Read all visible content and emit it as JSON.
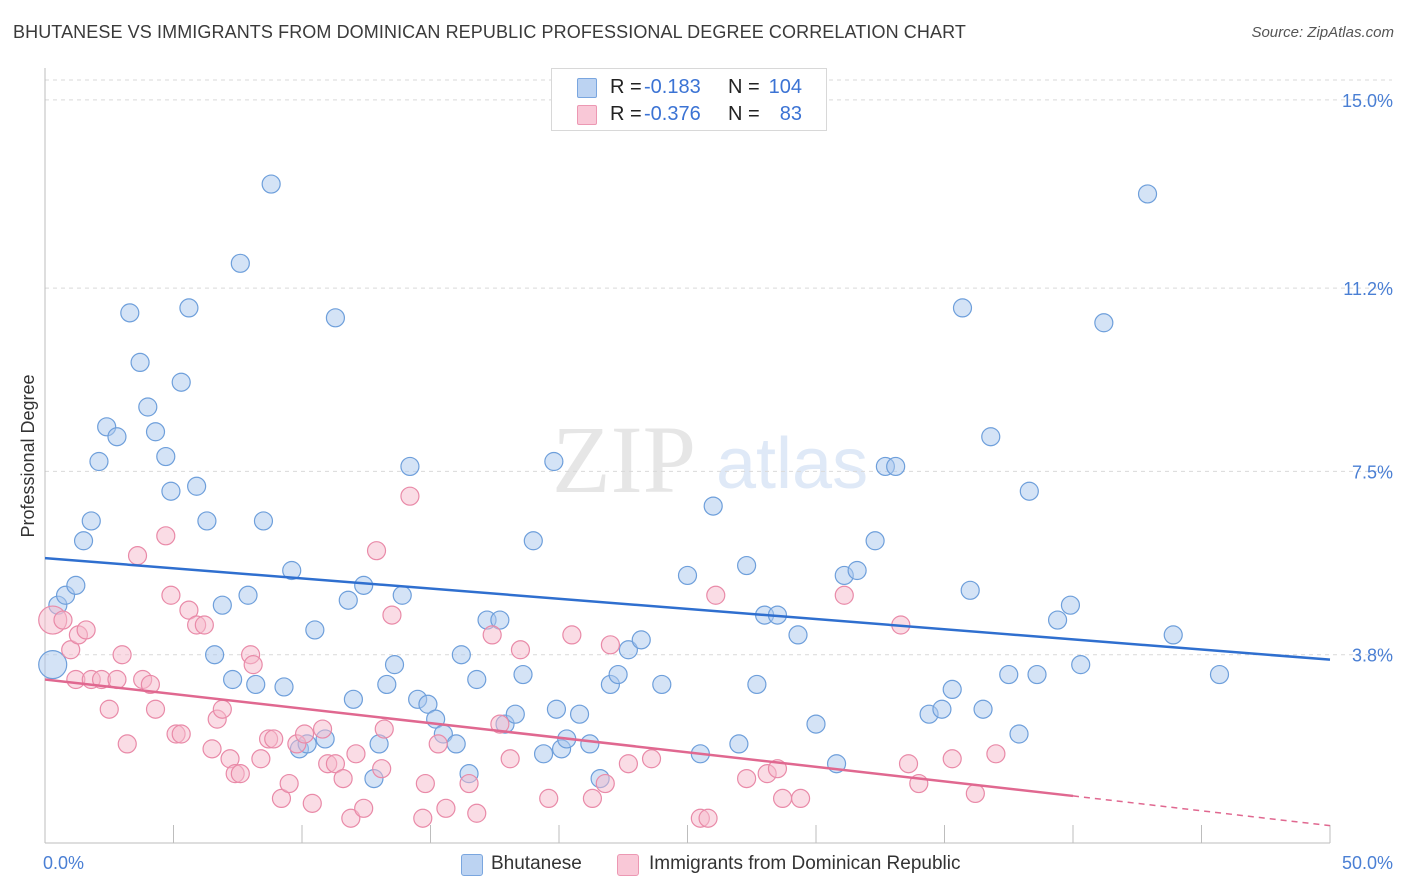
{
  "title": "BHUTANESE VS IMMIGRANTS FROM DOMINICAN REPUBLIC PROFESSIONAL DEGREE CORRELATION CHART",
  "source": "Source: ZipAtlas.com",
  "watermark": {
    "zip": "ZIP",
    "atlas": "atlas"
  },
  "legend_top": [
    {
      "r_label": "R =",
      "r_value": "-0.183",
      "n_label": "N =",
      "n_value": "104"
    },
    {
      "r_label": "R =",
      "r_value": "-0.376",
      "n_label": "N =",
      "n_value": "83"
    }
  ],
  "legend_bottom": [
    "Bhutanese",
    "Immigrants from Dominican Republic"
  ],
  "colors": {
    "blue_fill": "#a9c7ee",
    "blue_stroke": "#6e9fdb",
    "blue_line": "#2f6fcf",
    "pink_fill": "#f6b9cb",
    "pink_stroke": "#e98aa8",
    "pink_line": "#e06890",
    "tick_text": "#4a7fd4",
    "grid": "#d9d9d9"
  },
  "chart_data": {
    "type": "scatter",
    "title": "BHUTANESE VS IMMIGRANTS FROM DOMINICAN REPUBLIC PROFESSIONAL DEGREE CORRELATION CHART",
    "ylabel": "Professional Degree",
    "xlabel": "",
    "xlim": [
      0,
      50
    ],
    "ylim": [
      0,
      15.4
    ],
    "x_tick_labels": [
      "0.0%",
      "50.0%"
    ],
    "y_ticks": [
      3.8,
      7.5,
      11.2,
      15.0
    ],
    "y_tick_labels": [
      "3.8%",
      "7.5%",
      "11.2%",
      "15.0%"
    ],
    "series": [
      {
        "name": "Bhutanese",
        "r": -0.183,
        "n": 104,
        "trend": {
          "x0": 0,
          "y0": 5.75,
          "x1": 50,
          "y1": 3.7
        },
        "points": [
          [
            0.3,
            3.6
          ],
          [
            0.5,
            4.8
          ],
          [
            0.8,
            5.0
          ],
          [
            1.2,
            5.2
          ],
          [
            1.5,
            6.1
          ],
          [
            1.8,
            6.5
          ],
          [
            2.1,
            7.7
          ],
          [
            2.4,
            8.4
          ],
          [
            2.8,
            8.2
          ],
          [
            3.3,
            10.7
          ],
          [
            3.7,
            9.7
          ],
          [
            4.0,
            8.8
          ],
          [
            4.3,
            8.3
          ],
          [
            4.7,
            7.8
          ],
          [
            4.9,
            7.1
          ],
          [
            5.3,
            9.3
          ],
          [
            5.6,
            10.8
          ],
          [
            5.9,
            7.2
          ],
          [
            6.3,
            6.5
          ],
          [
            6.6,
            3.8
          ],
          [
            6.9,
            4.8
          ],
          [
            7.3,
            3.3
          ],
          [
            7.6,
            11.7
          ],
          [
            7.9,
            5.0
          ],
          [
            8.2,
            3.2
          ],
          [
            8.5,
            6.5
          ],
          [
            8.8,
            13.3
          ],
          [
            9.3,
            3.15
          ],
          [
            9.6,
            5.5
          ],
          [
            9.9,
            1.9
          ],
          [
            10.2,
            2.0
          ],
          [
            10.5,
            4.3
          ],
          [
            10.9,
            2.1
          ],
          [
            11.3,
            10.6
          ],
          [
            11.8,
            4.9
          ],
          [
            12.0,
            2.9
          ],
          [
            12.4,
            5.2
          ],
          [
            12.8,
            1.3
          ],
          [
            13.0,
            2.0
          ],
          [
            13.3,
            3.2
          ],
          [
            13.6,
            3.6
          ],
          [
            13.9,
            5.0
          ],
          [
            14.2,
            7.6
          ],
          [
            14.5,
            2.9
          ],
          [
            14.9,
            2.8
          ],
          [
            15.2,
            2.5
          ],
          [
            15.5,
            2.2
          ],
          [
            16.0,
            2.0
          ],
          [
            16.2,
            3.8
          ],
          [
            16.5,
            1.4
          ],
          [
            16.8,
            3.3
          ],
          [
            17.2,
            4.5
          ],
          [
            17.7,
            4.5
          ],
          [
            17.9,
            2.4
          ],
          [
            18.3,
            2.6
          ],
          [
            18.6,
            3.4
          ],
          [
            19.0,
            6.1
          ],
          [
            19.4,
            1.8
          ],
          [
            19.8,
            7.7
          ],
          [
            19.9,
            2.7
          ],
          [
            20.1,
            1.9
          ],
          [
            20.3,
            2.1
          ],
          [
            20.8,
            2.6
          ],
          [
            21.2,
            2.0
          ],
          [
            21.6,
            1.3
          ],
          [
            22.0,
            3.2
          ],
          [
            22.3,
            3.4
          ],
          [
            22.7,
            3.9
          ],
          [
            23.2,
            4.1
          ],
          [
            24.0,
            3.2
          ],
          [
            25.0,
            5.4
          ],
          [
            25.5,
            1.8
          ],
          [
            26.0,
            6.8
          ],
          [
            27.0,
            2.0
          ],
          [
            27.3,
            5.6
          ],
          [
            27.7,
            3.2
          ],
          [
            28.0,
            4.6
          ],
          [
            28.5,
            4.6
          ],
          [
            29.3,
            4.2
          ],
          [
            30.0,
            2.4
          ],
          [
            30.8,
            1.6
          ],
          [
            31.1,
            5.4
          ],
          [
            31.6,
            5.5
          ],
          [
            32.3,
            6.1
          ],
          [
            32.7,
            7.6
          ],
          [
            33.1,
            7.6
          ],
          [
            34.4,
            2.6
          ],
          [
            34.9,
            2.7
          ],
          [
            35.3,
            3.1
          ],
          [
            35.7,
            10.8
          ],
          [
            36.0,
            5.1
          ],
          [
            36.5,
            2.7
          ],
          [
            36.8,
            8.2
          ],
          [
            37.5,
            3.4
          ],
          [
            37.9,
            2.2
          ],
          [
            38.3,
            7.1
          ],
          [
            38.6,
            3.4
          ],
          [
            39.4,
            4.5
          ],
          [
            39.9,
            4.8
          ],
          [
            40.3,
            3.6
          ],
          [
            41.2,
            10.5
          ],
          [
            42.9,
            13.1
          ],
          [
            43.9,
            4.2
          ],
          [
            45.7,
            3.4
          ]
        ]
      },
      {
        "name": "Immigrants from Dominican Republic",
        "r": -0.376,
        "n": 83,
        "trend_solid": {
          "x0": 0,
          "y0": 3.3,
          "x1": 40,
          "y1": 0.95
        },
        "trend_dashed": {
          "x0": 40,
          "y0": 0.95,
          "x1": 50,
          "y1": 0.35
        },
        "points": [
          [
            0.3,
            4.5
          ],
          [
            0.7,
            4.5
          ],
          [
            1.0,
            3.9
          ],
          [
            1.2,
            3.3
          ],
          [
            1.3,
            4.2
          ],
          [
            1.6,
            4.3
          ],
          [
            1.8,
            3.3
          ],
          [
            2.2,
            3.3
          ],
          [
            2.5,
            2.7
          ],
          [
            2.8,
            3.3
          ],
          [
            3.0,
            3.8
          ],
          [
            3.2,
            2.0
          ],
          [
            3.6,
            5.8
          ],
          [
            3.8,
            3.3
          ],
          [
            4.1,
            3.2
          ],
          [
            4.3,
            2.7
          ],
          [
            4.7,
            6.2
          ],
          [
            4.9,
            5.0
          ],
          [
            5.1,
            2.2
          ],
          [
            5.3,
            2.2
          ],
          [
            5.6,
            4.7
          ],
          [
            5.9,
            4.4
          ],
          [
            6.2,
            4.4
          ],
          [
            6.5,
            1.9
          ],
          [
            6.7,
            2.5
          ],
          [
            6.9,
            2.7
          ],
          [
            7.2,
            1.7
          ],
          [
            7.4,
            1.4
          ],
          [
            7.6,
            1.4
          ],
          [
            8.0,
            3.8
          ],
          [
            8.1,
            3.6
          ],
          [
            8.4,
            1.7
          ],
          [
            8.7,
            2.1
          ],
          [
            8.9,
            2.1
          ],
          [
            9.2,
            0.9
          ],
          [
            9.5,
            1.2
          ],
          [
            9.8,
            2.0
          ],
          [
            10.1,
            2.2
          ],
          [
            10.4,
            0.8
          ],
          [
            10.8,
            2.3
          ],
          [
            11.0,
            1.6
          ],
          [
            11.3,
            1.6
          ],
          [
            11.6,
            1.3
          ],
          [
            11.9,
            0.5
          ],
          [
            12.1,
            1.8
          ],
          [
            12.4,
            0.7
          ],
          [
            12.9,
            5.9
          ],
          [
            13.1,
            1.5
          ],
          [
            13.2,
            2.3
          ],
          [
            13.5,
            4.6
          ],
          [
            14.2,
            7.0
          ],
          [
            14.7,
            0.5
          ],
          [
            14.8,
            1.2
          ],
          [
            15.3,
            2.0
          ],
          [
            15.6,
            0.7
          ],
          [
            16.5,
            1.2
          ],
          [
            16.8,
            0.6
          ],
          [
            17.4,
            4.2
          ],
          [
            17.7,
            2.4
          ],
          [
            18.1,
            1.7
          ],
          [
            18.5,
            3.9
          ],
          [
            19.6,
            0.9
          ],
          [
            20.5,
            4.2
          ],
          [
            21.3,
            0.9
          ],
          [
            21.8,
            1.2
          ],
          [
            22.0,
            4.0
          ],
          [
            22.7,
            1.6
          ],
          [
            23.6,
            1.7
          ],
          [
            25.5,
            0.5
          ],
          [
            25.8,
            0.5
          ],
          [
            26.1,
            5.0
          ],
          [
            27.3,
            1.3
          ],
          [
            28.1,
            1.4
          ],
          [
            28.5,
            1.5
          ],
          [
            28.7,
            0.9
          ],
          [
            29.4,
            0.9
          ],
          [
            31.1,
            5.0
          ],
          [
            33.3,
            4.4
          ],
          [
            33.6,
            1.6
          ],
          [
            34.0,
            1.2
          ],
          [
            35.3,
            1.7
          ],
          [
            36.2,
            1.0
          ],
          [
            37.0,
            1.8
          ]
        ]
      }
    ]
  }
}
